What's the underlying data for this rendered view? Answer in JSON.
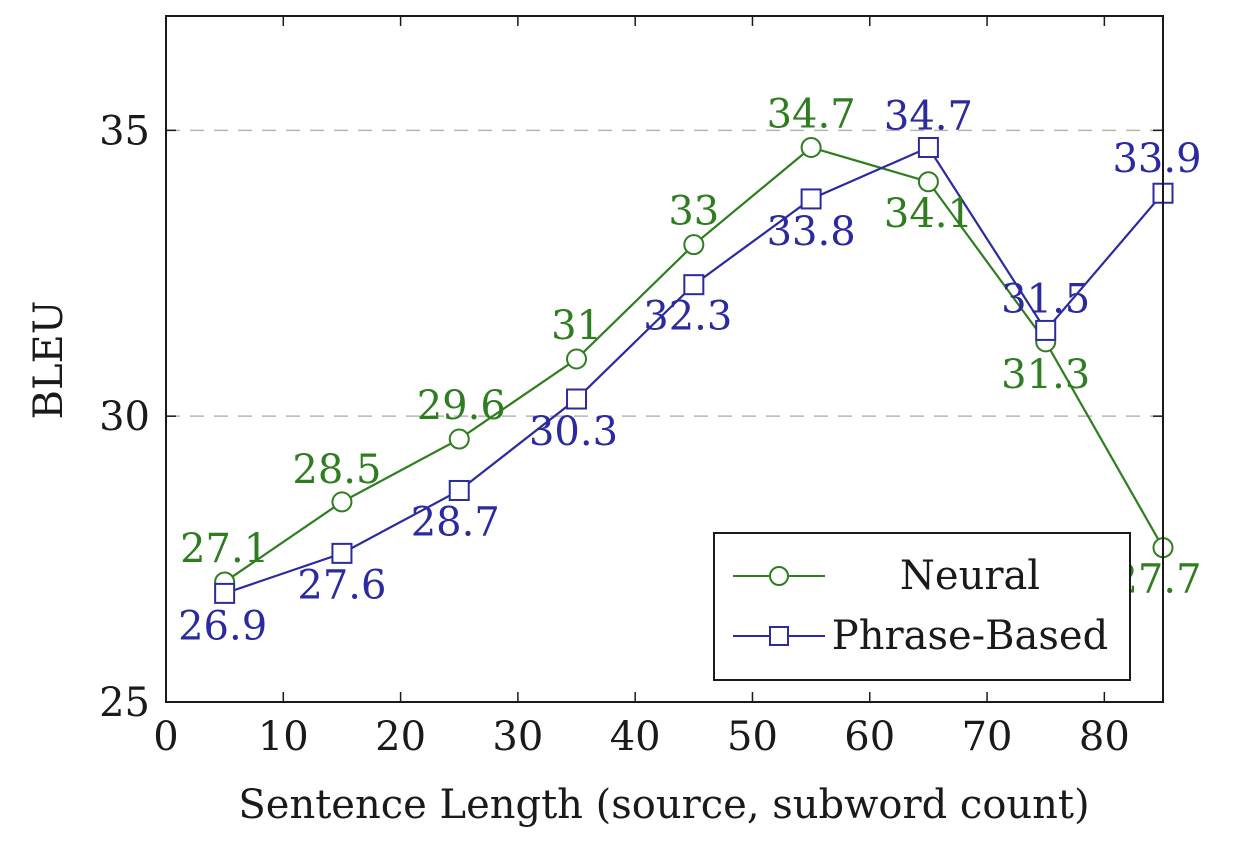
{
  "chart_data": {
    "type": "line",
    "xlabel": "Sentence Length (source, subword count)",
    "ylabel": "BLEU",
    "xlim": [
      0,
      85
    ],
    "ylim": [
      25,
      37
    ],
    "x_ticks": [
      0,
      10,
      20,
      30,
      40,
      50,
      60,
      70,
      80
    ],
    "y_ticks": [
      25,
      30,
      35
    ],
    "grid": "horizontal dashed at 30 and 35",
    "legend_position": "bottom-right",
    "x": [
      5,
      15,
      25,
      35,
      45,
      55,
      65,
      75,
      85
    ],
    "series": [
      {
        "name": "Neural",
        "marker": "circle",
        "color": "#2e7d1e",
        "values": [
          27.1,
          28.5,
          29.6,
          31,
          33,
          34.7,
          34.1,
          31.3,
          27.7
        ],
        "labels": [
          "27.1",
          "28.5",
          "29.6",
          "31",
          "33",
          "34.7",
          "34.1",
          "31.3",
          "27.7"
        ]
      },
      {
        "name": "Phrase-Based",
        "marker": "square",
        "color": "#2b2a9e",
        "values": [
          26.9,
          27.6,
          28.7,
          30.3,
          32.3,
          33.8,
          34.7,
          31.5,
          33.9
        ],
        "labels": [
          "26.9",
          "27.6",
          "28.7",
          "30.3",
          "32.3",
          "33.8",
          "34.7",
          "31.5",
          "33.9"
        ]
      }
    ]
  }
}
